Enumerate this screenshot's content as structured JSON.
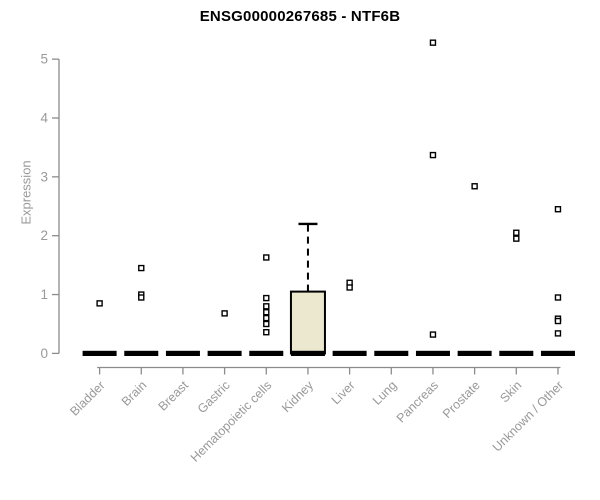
{
  "chart_data": {
    "type": "boxplot",
    "title": "ENSG00000267685 - NTF6B",
    "ylabel": "Expression",
    "xlabel": "",
    "ylim": [
      0,
      5
    ],
    "yticks": [
      0,
      1,
      2,
      3,
      4,
      5
    ],
    "grid": false,
    "legend": false,
    "categories": [
      "Bladder",
      "Brain",
      "Breast",
      "Gastric",
      "Hematopoietic cells",
      "Kidney",
      "Liver",
      "Lung",
      "Pancreas",
      "Prostate",
      "Skin",
      "Unknown / Other"
    ],
    "series": [
      {
        "name": "Bladder",
        "median": 0,
        "q1": 0,
        "q3": 0,
        "whisker_low": 0,
        "whisker_high": 0,
        "points": [
          0.85
        ]
      },
      {
        "name": "Brain",
        "median": 0,
        "q1": 0,
        "q3": 0,
        "whisker_low": 0,
        "whisker_high": 0,
        "points": [
          1.45,
          1.0,
          0.95
        ]
      },
      {
        "name": "Breast",
        "median": 0,
        "q1": 0,
        "q3": 0,
        "whisker_low": 0,
        "whisker_high": 0,
        "points": []
      },
      {
        "name": "Gastric",
        "median": 0,
        "q1": 0,
        "q3": 0,
        "whisker_low": 0,
        "whisker_high": 0,
        "points": [
          0.68
        ]
      },
      {
        "name": "Hematopoietic cells",
        "median": 0,
        "q1": 0,
        "q3": 0,
        "whisker_low": 0,
        "whisker_high": 0,
        "points": [
          1.63,
          0.94,
          0.8,
          0.7,
          0.6,
          0.5,
          0.36
        ]
      },
      {
        "name": "Kidney",
        "median": 0,
        "q1": 0,
        "q3": 1.05,
        "whisker_low": 0,
        "whisker_high": 2.2,
        "points": []
      },
      {
        "name": "Liver",
        "median": 0,
        "q1": 0,
        "q3": 0,
        "whisker_low": 0,
        "whisker_high": 0,
        "points": [
          1.2,
          1.12
        ]
      },
      {
        "name": "Lung",
        "median": 0,
        "q1": 0,
        "q3": 0,
        "whisker_low": 0,
        "whisker_high": 0,
        "points": []
      },
      {
        "name": "Pancreas",
        "median": 0,
        "q1": 0,
        "q3": 0,
        "whisker_low": 0,
        "whisker_high": 0,
        "points": [
          5.28,
          3.37,
          0.32
        ]
      },
      {
        "name": "Prostate",
        "median": 0,
        "q1": 0,
        "q3": 0,
        "whisker_low": 0,
        "whisker_high": 0,
        "points": [
          2.84
        ]
      },
      {
        "name": "Skin",
        "median": 0,
        "q1": 0,
        "q3": 0,
        "whisker_low": 0,
        "whisker_high": 0,
        "points": [
          2.05,
          1.95
        ]
      },
      {
        "name": "Unknown / Other",
        "median": 0,
        "q1": 0,
        "q3": 0,
        "whisker_low": 0,
        "whisker_high": 0,
        "points": [
          2.45,
          0.95,
          0.59,
          0.55,
          0.34
        ]
      }
    ],
    "colors": {
      "box_fill": "#ECE7CF",
      "box_border": "#000000",
      "median": "#000000",
      "outlier_fill": "#FFFFFF",
      "outlier_border": "#000000",
      "axis": "#8C8C8C",
      "tick_label": "#999999",
      "title": "#000000",
      "background": "#FFFFFF"
    }
  }
}
